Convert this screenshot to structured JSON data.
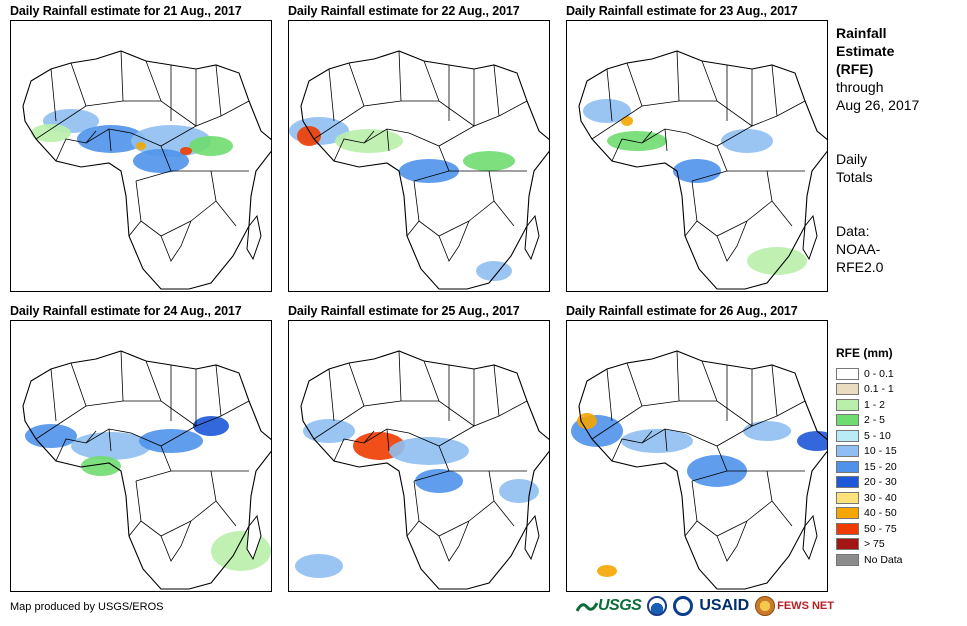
{
  "panels": [
    {
      "title": "Daily Rainfall estimate for 21 Aug., 2017"
    },
    {
      "title": "Daily Rainfall estimate for 22 Aug., 2017"
    },
    {
      "title": "Daily Rainfall estimate for 23 Aug., 2017"
    },
    {
      "title": "Daily Rainfall estimate for 24 Aug., 2017"
    },
    {
      "title": "Daily Rainfall estimate for 25 Aug., 2017"
    },
    {
      "title": "Daily Rainfall estimate for 26 Aug., 2017"
    }
  ],
  "side": {
    "title_line1": "Rainfall",
    "title_line2": "Estimate",
    "title_line3": "(RFE)",
    "through": "through",
    "date": "Aug 26, 2017",
    "totals_line1": "Daily",
    "totals_line2": "Totals",
    "data_label": "Data:",
    "data_line1": "NOAA-",
    "data_line2": "RFE2.0"
  },
  "legend": {
    "title": "RFE (mm)",
    "items": [
      {
        "label": "0 - 0.1",
        "color": "#ffffff"
      },
      {
        "label": "0.1 - 1",
        "color": "#eadcc0"
      },
      {
        "label": "1 - 2",
        "color": "#b9efaa"
      },
      {
        "label": "2 - 5",
        "color": "#6fdc6f"
      },
      {
        "label": "5 - 10",
        "color": "#b7ecf6"
      },
      {
        "label": "10 - 15",
        "color": "#8fbff2"
      },
      {
        "label": "15 - 20",
        "color": "#4f92ea"
      },
      {
        "label": "20 - 30",
        "color": "#1c58d8"
      },
      {
        "label": "30 - 40",
        "color": "#fbe27a"
      },
      {
        "label": "40 - 50",
        "color": "#f5a600"
      },
      {
        "label": "50 - 75",
        "color": "#ee3c00"
      },
      {
        "label": "> 75",
        "color": "#a31414"
      },
      {
        "label": "No Data",
        "color": "#8c8c8c"
      }
    ]
  },
  "footer": {
    "credit": "Map produced by USGS/EROS",
    "logo_usgs": "USGS",
    "logo_usaid": "USAID",
    "logo_fews": "FEWS NET"
  }
}
